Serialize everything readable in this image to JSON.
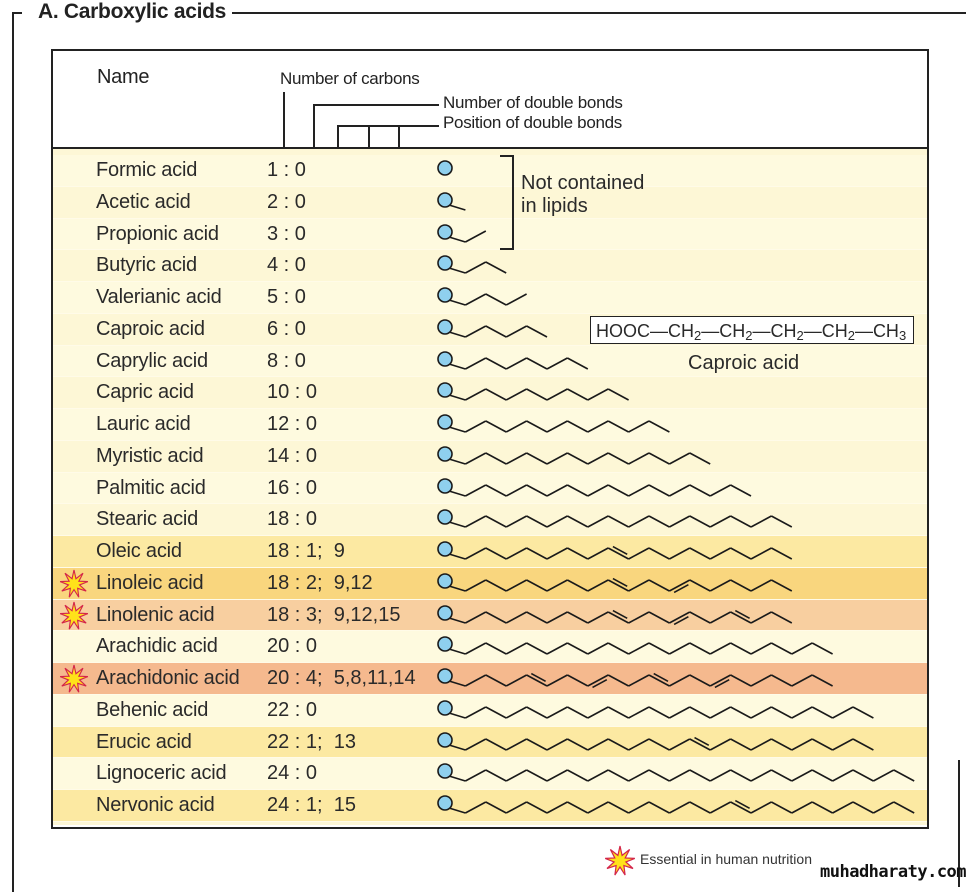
{
  "section_title": "A. Carboxylic acids",
  "header": {
    "name": "Name",
    "number_of_carbons": "Number of carbons",
    "number_of_double_bonds": "Number of double bonds",
    "position_of_double_bonds": "Position of double bonds"
  },
  "colors": {
    "default_row": "#fdf7d6",
    "alt_row": "#fefadf",
    "monounsaturated": "#fce9a2",
    "linoleic": "#f9d67e",
    "linolenic": "#f8cfa0",
    "arachidonic": "#f5b98e",
    "carboxyl_circle": "#8fd0ee",
    "star_fill": "#ffe21a",
    "star_stroke": "#d4254a"
  },
  "rows": [
    {
      "name": "Formic acid",
      "notation": "1 : 0",
      "carbons": 1,
      "double_bonds": [],
      "essential": false,
      "highlight": "alt_row"
    },
    {
      "name": "Acetic acid",
      "notation": "2 : 0",
      "carbons": 2,
      "double_bonds": [],
      "essential": false,
      "highlight": "default_row"
    },
    {
      "name": "Propionic acid",
      "notation": "3 : 0",
      "carbons": 3,
      "double_bonds": [],
      "essential": false,
      "highlight": "alt_row"
    },
    {
      "name": "Butyric acid",
      "notation": "4 : 0",
      "carbons": 4,
      "double_bonds": [],
      "essential": false,
      "highlight": "default_row"
    },
    {
      "name": "Valerianic acid",
      "notation": "5 : 0",
      "carbons": 5,
      "double_bonds": [],
      "essential": false,
      "highlight": "alt_row"
    },
    {
      "name": "Caproic acid",
      "notation": "6 : 0",
      "carbons": 6,
      "double_bonds": [],
      "essential": false,
      "highlight": "default_row"
    },
    {
      "name": "Caprylic acid",
      "notation": "8 : 0",
      "carbons": 8,
      "double_bonds": [],
      "essential": false,
      "highlight": "alt_row"
    },
    {
      "name": "Capric acid",
      "notation": "10 : 0",
      "carbons": 10,
      "double_bonds": [],
      "essential": false,
      "highlight": "default_row"
    },
    {
      "name": "Lauric acid",
      "notation": "12 : 0",
      "carbons": 12,
      "double_bonds": [],
      "essential": false,
      "highlight": "alt_row"
    },
    {
      "name": "Myristic acid",
      "notation": "14 : 0",
      "carbons": 14,
      "double_bonds": [],
      "essential": false,
      "highlight": "default_row"
    },
    {
      "name": "Palmitic acid",
      "notation": "16 : 0",
      "carbons": 16,
      "double_bonds": [],
      "essential": false,
      "highlight": "alt_row"
    },
    {
      "name": "Stearic acid",
      "notation": "18 : 0",
      "carbons": 18,
      "double_bonds": [],
      "essential": false,
      "highlight": "default_row"
    },
    {
      "name": "Oleic acid",
      "notation": "18 : 1;  9",
      "carbons": 18,
      "double_bonds": [
        9
      ],
      "essential": false,
      "highlight": "monounsaturated"
    },
    {
      "name": "Linoleic acid",
      "notation": "18 : 2;  9,12",
      "carbons": 18,
      "double_bonds": [
        9,
        12
      ],
      "essential": true,
      "highlight": "linoleic"
    },
    {
      "name": "Linolenic acid",
      "notation": "18 : 3;  9,12,15",
      "carbons": 18,
      "double_bonds": [
        9,
        12,
        15
      ],
      "essential": true,
      "highlight": "linolenic"
    },
    {
      "name": "Arachidic acid",
      "notation": "20 : 0",
      "carbons": 20,
      "double_bonds": [],
      "essential": false,
      "highlight": "alt_row"
    },
    {
      "name": "Arachidonic acid",
      "notation": "20 : 4;  5,8,11,14",
      "carbons": 20,
      "double_bonds": [
        5,
        8,
        11,
        14
      ],
      "essential": true,
      "highlight": "arachidonic"
    },
    {
      "name": "Behenic acid",
      "notation": "22 : 0",
      "carbons": 22,
      "double_bonds": [],
      "essential": false,
      "highlight": "alt_row"
    },
    {
      "name": "Erucic acid",
      "notation": "22 : 1;  13",
      "carbons": 22,
      "double_bonds": [
        13
      ],
      "essential": false,
      "highlight": "monounsaturated"
    },
    {
      "name": "Lignoceric acid",
      "notation": "24 : 0",
      "carbons": 24,
      "double_bonds": [],
      "essential": false,
      "highlight": "alt_row"
    },
    {
      "name": "Nervonic acid",
      "notation": "24 : 1;  15",
      "carbons": 24,
      "double_bonds": [
        15
      ],
      "essential": false,
      "highlight": "monounsaturated"
    }
  ],
  "annotation": {
    "line1": "Not contained",
    "line2": "in lipids"
  },
  "formula": {
    "parts": [
      "HOOC—CH",
      "2",
      "—CH",
      "2",
      "—CH",
      "2",
      "—CH",
      "2",
      "—CH",
      "3"
    ],
    "label": "Caproic acid"
  },
  "legend": {
    "text": "Essential in human nutrition",
    "icon": "star-burst-icon"
  },
  "watermark": "muhadharaty.com"
}
